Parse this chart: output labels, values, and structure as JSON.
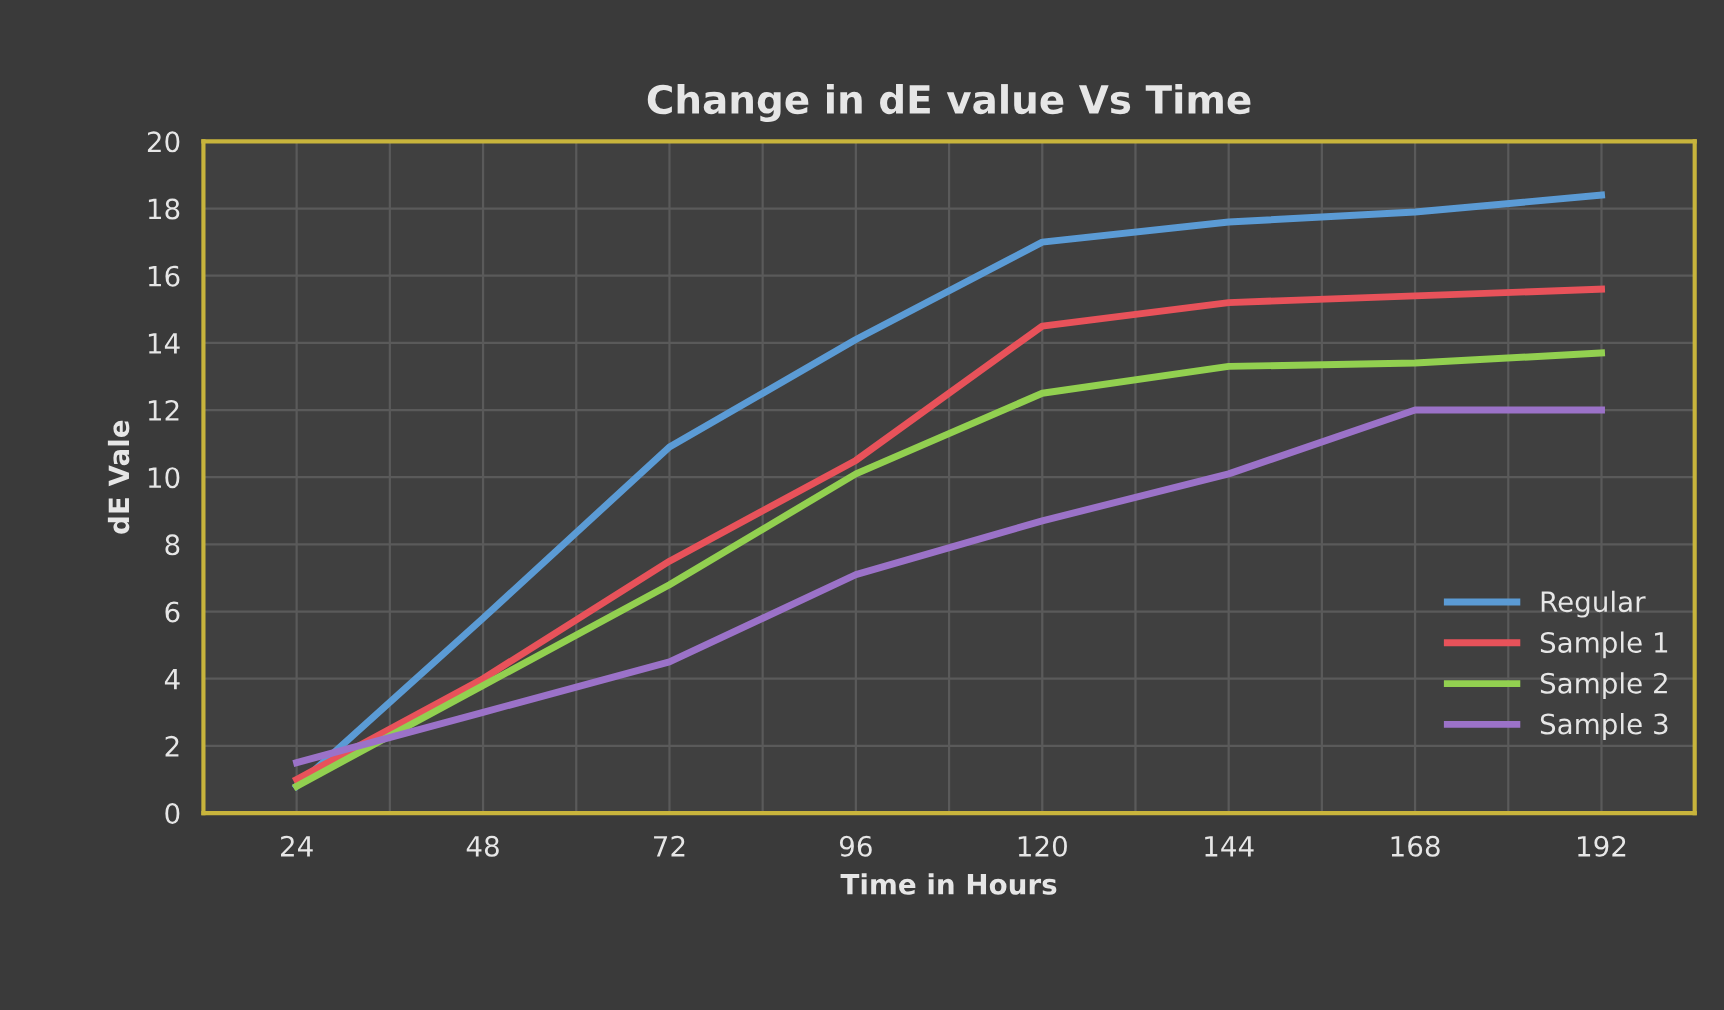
{
  "chart_data": {
    "type": "line",
    "title": "Change in dE value Vs Time",
    "xlabel": "Time in Hours",
    "ylabel": "dE Vale",
    "categories": [
      "24",
      "48",
      "72",
      "96",
      "120",
      "144",
      "168",
      "192"
    ],
    "series": [
      {
        "name": "Regular",
        "color": "#5b9bd5",
        "values": [
          0.8,
          5.8,
          10.9,
          14.1,
          17.0,
          17.6,
          17.9,
          18.4
        ]
      },
      {
        "name": "Sample 1",
        "color": "#e8525a",
        "values": [
          1.0,
          4.0,
          7.5,
          10.5,
          14.5,
          15.2,
          15.4,
          15.6
        ]
      },
      {
        "name": "Sample 2",
        "color": "#92d050",
        "values": [
          0.8,
          3.8,
          6.8,
          10.1,
          12.5,
          13.3,
          13.4,
          13.7
        ]
      },
      {
        "name": "Sample 3",
        "color": "#9b72c8",
        "values": [
          1.5,
          3.0,
          4.5,
          7.1,
          8.7,
          10.1,
          12.0,
          12.0
        ]
      }
    ],
    "ylim": [
      0,
      20
    ],
    "yticks": [
      0,
      2,
      4,
      6,
      8,
      10,
      12,
      14,
      16,
      18,
      20
    ],
    "grid": true,
    "legend": "right",
    "marker": "none",
    "line_style": "solid"
  }
}
